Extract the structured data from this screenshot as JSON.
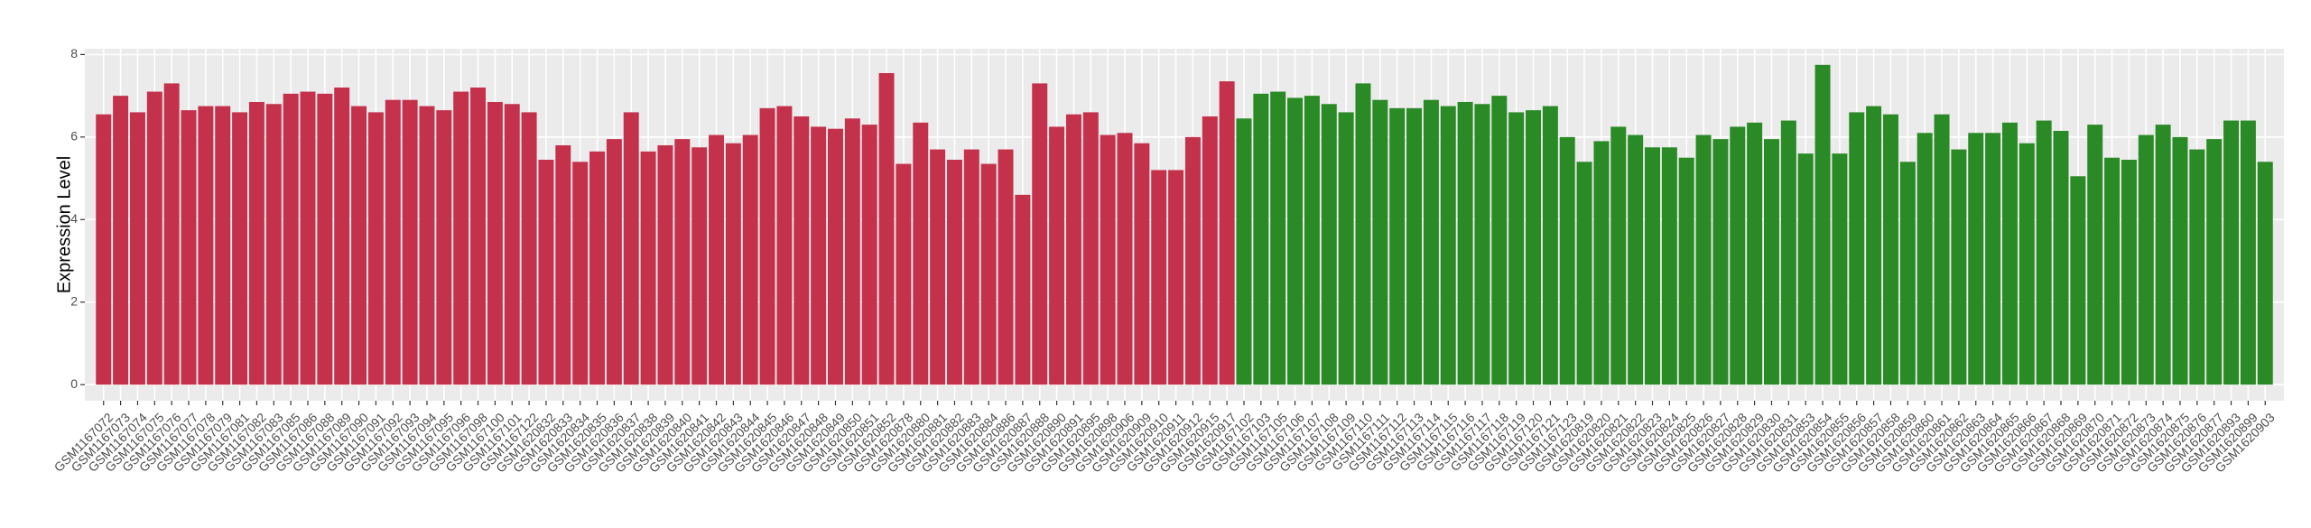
{
  "chart_data": {
    "type": "bar",
    "y_label": "Expression Level",
    "categories": [
      "GSM1167072",
      "GSM1167073",
      "GSM1167074",
      "GSM1167075",
      "GSM1167076",
      "GSM1167077",
      "GSM1167078",
      "GSM1167079",
      "GSM1167081",
      "GSM1167082",
      "GSM1167083",
      "GSM1167085",
      "GSM1167086",
      "GSM1167088",
      "GSM1167089",
      "GSM1167090",
      "GSM1167091",
      "GSM1167092",
      "GSM1167093",
      "GSM1167094",
      "GSM1167095",
      "GSM1167096",
      "GSM1167098",
      "GSM1167100",
      "GSM1167101",
      "GSM1167122",
      "GSM1620832",
      "GSM1620833",
      "GSM1620834",
      "GSM1620835",
      "GSM1620836",
      "GSM1620837",
      "GSM1620838",
      "GSM1620839",
      "GSM1620840",
      "GSM1620841",
      "GSM1620842",
      "GSM1620843",
      "GSM1620844",
      "GSM1620845",
      "GSM1620846",
      "GSM1620847",
      "GSM1620848",
      "GSM1620849",
      "GSM1620850",
      "GSM1620851",
      "GSM1620852",
      "GSM1620878",
      "GSM1620880",
      "GSM1620881",
      "GSM1620882",
      "GSM1620883",
      "GSM1620884",
      "GSM1620886",
      "GSM1620887",
      "GSM1620888",
      "GSM1620890",
      "GSM1620891",
      "GSM1620895",
      "GSM1620898",
      "GSM1620906",
      "GSM1620909",
      "GSM1620910",
      "GSM1620911",
      "GSM1620912",
      "GSM1620915",
      "GSM1620917",
      "GSM1167102",
      "GSM1167103",
      "GSM1167105",
      "GSM1167106",
      "GSM1167107",
      "GSM1167108",
      "GSM1167109",
      "GSM1167110",
      "GSM1167111",
      "GSM1167112",
      "GSM1167113",
      "GSM1167114",
      "GSM1167115",
      "GSM1167116",
      "GSM1167117",
      "GSM1167118",
      "GSM1167119",
      "GSM1167120",
      "GSM1167121",
      "GSM1167123",
      "GSM1620819",
      "GSM1620820",
      "GSM1620821",
      "GSM1620822",
      "GSM1620823",
      "GSM1620824",
      "GSM1620825",
      "GSM1620826",
      "GSM1620827",
      "GSM1620828",
      "GSM1620829",
      "GSM1620830",
      "GSM1620831",
      "GSM1620853",
      "GSM1620854",
      "GSM1620855",
      "GSM1620856",
      "GSM1620857",
      "GSM1620858",
      "GSM1620859",
      "GSM1620860",
      "GSM1620861",
      "GSM1620862",
      "GSM1620863",
      "GSM1620864",
      "GSM1620865",
      "GSM1620866",
      "GSM1620867",
      "GSM1620868",
      "GSM1620869",
      "GSM1620870",
      "GSM1620871",
      "GSM1620872",
      "GSM1620873",
      "GSM1620874",
      "GSM1620875",
      "GSM1620876",
      "GSM1620877",
      "GSM1620893",
      "GSM1620899",
      "GSM1620903"
    ],
    "values": [
      6.55,
      7.0,
      6.6,
      7.1,
      7.3,
      6.65,
      6.75,
      6.75,
      6.6,
      6.85,
      6.8,
      7.05,
      7.1,
      7.05,
      7.2,
      6.75,
      6.6,
      6.9,
      6.9,
      6.75,
      6.65,
      7.1,
      7.2,
      6.85,
      6.8,
      6.6,
      5.45,
      5.8,
      5.4,
      5.65,
      5.95,
      6.6,
      5.65,
      5.8,
      5.95,
      5.75,
      6.05,
      5.85,
      6.05,
      6.7,
      6.75,
      6.5,
      6.25,
      6.2,
      6.45,
      6.3,
      7.55,
      5.35,
      6.35,
      5.7,
      5.45,
      5.7,
      5.35,
      5.7,
      4.6,
      7.3,
      6.25,
      6.55,
      6.6,
      6.05,
      6.1,
      5.85,
      5.2,
      5.2,
      6.0,
      6.5,
      7.35,
      6.45,
      7.05,
      7.1,
      6.95,
      7.0,
      6.8,
      6.6,
      7.3,
      6.9,
      6.7,
      6.7,
      6.9,
      6.75,
      6.85,
      6.8,
      7.0,
      6.6,
      6.65,
      6.75,
      6.0,
      5.4,
      5.9,
      6.25,
      6.05,
      5.75,
      5.75,
      5.5,
      6.05,
      5.95,
      6.25,
      6.35,
      5.95,
      6.4,
      5.6,
      7.75,
      5.6,
      6.6,
      6.75,
      6.55,
      5.4,
      6.1,
      6.55,
      5.7,
      6.1,
      6.1,
      6.35,
      5.85,
      6.4,
      6.15,
      5.05,
      6.3,
      5.5,
      5.45,
      6.05,
      6.3,
      6.0,
      5.7,
      5.95,
      6.4,
      6.4,
      5.4
    ],
    "colors": [
      "#c4314b",
      "#c4314b",
      "#c4314b",
      "#c4314b",
      "#c4314b",
      "#c4314b",
      "#c4314b",
      "#c4314b",
      "#c4314b",
      "#c4314b",
      "#c4314b",
      "#c4314b",
      "#c4314b",
      "#c4314b",
      "#c4314b",
      "#c4314b",
      "#c4314b",
      "#c4314b",
      "#c4314b",
      "#c4314b",
      "#c4314b",
      "#c4314b",
      "#c4314b",
      "#c4314b",
      "#c4314b",
      "#c4314b",
      "#c4314b",
      "#c4314b",
      "#c4314b",
      "#c4314b",
      "#c4314b",
      "#c4314b",
      "#c4314b",
      "#c4314b",
      "#c4314b",
      "#c4314b",
      "#c4314b",
      "#c4314b",
      "#c4314b",
      "#c4314b",
      "#c4314b",
      "#c4314b",
      "#c4314b",
      "#c4314b",
      "#c4314b",
      "#c4314b",
      "#c4314b",
      "#c4314b",
      "#c4314b",
      "#c4314b",
      "#c4314b",
      "#c4314b",
      "#c4314b",
      "#c4314b",
      "#c4314b",
      "#c4314b",
      "#c4314b",
      "#c4314b",
      "#c4314b",
      "#c4314b",
      "#c4314b",
      "#c4314b",
      "#c4314b",
      "#c4314b",
      "#c4314b",
      "#c4314b",
      "#c4314b",
      "#2a8a26",
      "#2a8a26",
      "#2a8a26",
      "#2a8a26",
      "#2a8a26",
      "#2a8a26",
      "#2a8a26",
      "#2a8a26",
      "#2a8a26",
      "#2a8a26",
      "#2a8a26",
      "#2a8a26",
      "#2a8a26",
      "#2a8a26",
      "#2a8a26",
      "#2a8a26",
      "#2a8a26",
      "#2a8a26",
      "#2a8a26",
      "#2a8a26",
      "#2a8a26",
      "#2a8a26",
      "#2a8a26",
      "#2a8a26",
      "#2a8a26",
      "#2a8a26",
      "#2a8a26",
      "#2a8a26",
      "#2a8a26",
      "#2a8a26",
      "#2a8a26",
      "#2a8a26",
      "#2a8a26",
      "#2a8a26",
      "#2a8a26",
      "#2a8a26",
      "#2a8a26",
      "#2a8a26",
      "#2a8a26",
      "#2a8a26",
      "#2a8a26",
      "#2a8a26",
      "#2a8a26",
      "#2a8a26",
      "#2a8a26",
      "#2a8a26",
      "#2a8a26",
      "#2a8a26",
      "#2a8a26",
      "#2a8a26",
      "#2a8a26",
      "#2a8a26",
      "#2a8a26",
      "#2a8a26",
      "#2a8a26",
      "#2a8a26",
      "#2a8a26",
      "#2a8a26",
      "#2a8a26",
      "#2a8a26",
      "#2a8a26",
      "#2a8a26"
    ],
    "ylim": [
      -0.39,
      8.14
    ],
    "yticks": [
      0,
      2,
      4,
      6,
      8
    ],
    "grid": true
  }
}
